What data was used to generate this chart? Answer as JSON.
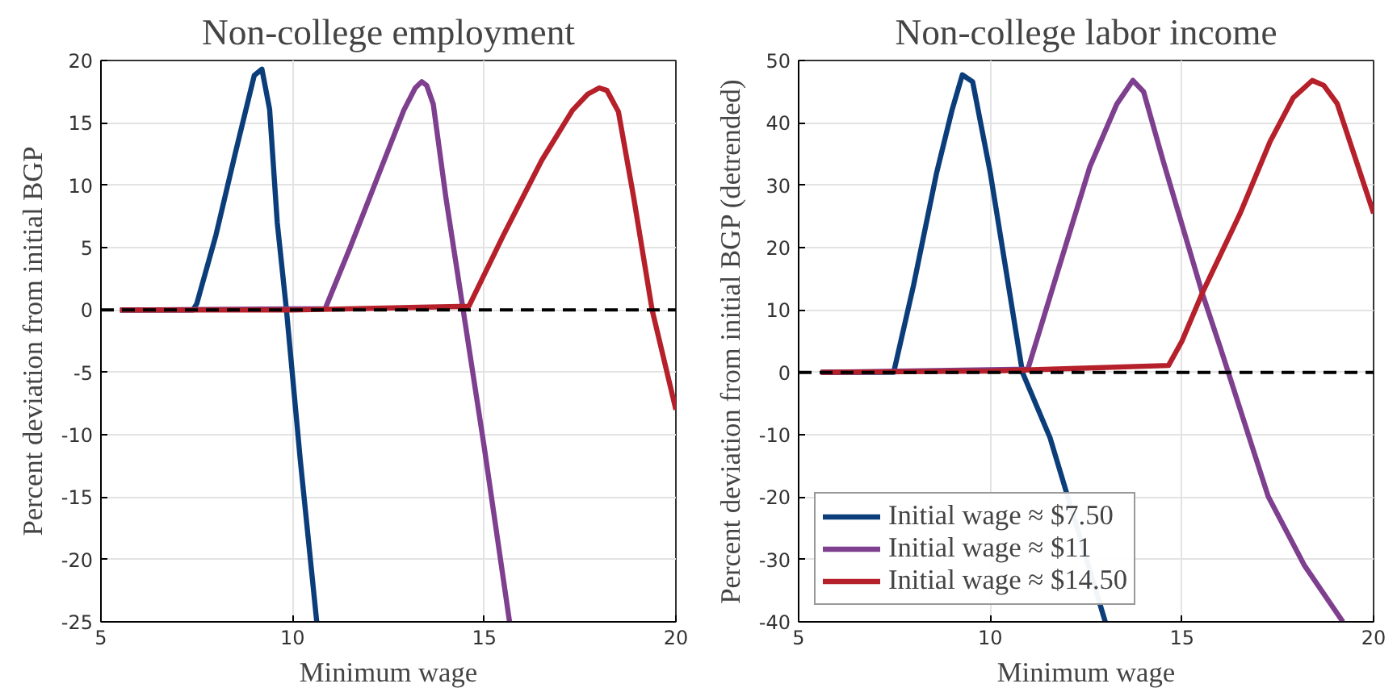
{
  "chart_data": [
    {
      "type": "line",
      "title": "Non-college employment",
      "xlabel": "Minimum wage",
      "ylabel": "Percent deviation from initial BGP",
      "xlim": [
        5,
        20
      ],
      "ylim": [
        -25,
        20
      ],
      "xticks": [
        5,
        10,
        15,
        20
      ],
      "yticks": [
        -25,
        -20,
        -15,
        -10,
        -5,
        0,
        5,
        10,
        15,
        20
      ],
      "grid": true,
      "legend": false,
      "ref_lines": [
        {
          "axis": "y",
          "value": 0,
          "color": "#000000",
          "line_style": "dashed"
        }
      ],
      "series": [
        {
          "color": "#0b3d7a",
          "x": [
            5.5,
            7.4,
            7.5,
            8.0,
            8.5,
            9.0,
            9.2,
            9.4,
            9.6,
            9.84,
            10.2,
            10.63
          ],
          "values": [
            0,
            0,
            0.5,
            6,
            12.5,
            18.8,
            19.3,
            16.1,
            7,
            0,
            -12,
            -25
          ]
        },
        {
          "color": "#7e3f8f",
          "x": [
            5.5,
            10.85,
            11.5,
            12.2,
            12.9,
            13.2,
            13.37,
            13.5,
            13.67,
            14.0,
            14.45,
            15.0,
            15.66
          ],
          "values": [
            0,
            0.1,
            5,
            10.5,
            16,
            17.8,
            18.3,
            18.0,
            16.5,
            9,
            0,
            -11,
            -25
          ]
        },
        {
          "color": "#b5202a",
          "x": [
            5.5,
            10,
            14.6,
            15.5,
            16.5,
            17.3,
            17.7,
            18.0,
            18.2,
            18.5,
            18.9,
            19.38,
            20.0
          ],
          "values": [
            0,
            0,
            0.3,
            6,
            12,
            16,
            17.3,
            17.8,
            17.6,
            15.9,
            9,
            0,
            -8
          ]
        }
      ]
    },
    {
      "type": "line",
      "title": "Non-college labor income",
      "xlabel": "Minimum wage",
      "ylabel": "Percent deviation from initial BGP (detrended)",
      "xlim": [
        5,
        20
      ],
      "ylim": [
        -40,
        50
      ],
      "xticks": [
        5,
        10,
        15,
        20
      ],
      "yticks": [
        -40,
        -30,
        -20,
        -10,
        0,
        10,
        20,
        30,
        40,
        50
      ],
      "grid": true,
      "legend": "bottom left",
      "ref_lines": [
        {
          "axis": "y",
          "value": 0,
          "color": "#000000",
          "line_style": "dashed"
        }
      ],
      "series": [
        {
          "name": "Initial wage ≈ $7.50",
          "color": "#0b3d7a",
          "x": [
            5.58,
            7.48,
            8.0,
            8.6,
            9.0,
            9.27,
            9.54,
            10.0,
            10.84,
            11.56,
            13.0
          ],
          "values": [
            0,
            0,
            14,
            32,
            42,
            47.7,
            46.6,
            32,
            0,
            -10.5,
            -40
          ]
        },
        {
          "name": "Initial wage ≈ $11",
          "color": "#7e3f8f",
          "x": [
            5.58,
            10.98,
            11.8,
            12.6,
            13.3,
            13.72,
            14.0,
            14.5,
            15.53,
            16.0,
            17.25,
            18.2,
            19.2
          ],
          "values": [
            0,
            0.5,
            17,
            33,
            43,
            46.8,
            45,
            34.1,
            12.7,
            4,
            -19.9,
            -31,
            -40
          ]
        },
        {
          "name": "Initial wage ≈ $14.50",
          "color": "#b5202a",
          "x": [
            5.58,
            10,
            14.65,
            15.0,
            15.53,
            16.52,
            17.3,
            17.9,
            18.4,
            18.7,
            19.05,
            20.0
          ],
          "values": [
            0,
            0.2,
            1.1,
            5,
            12.7,
            25.5,
            37,
            44,
            46.8,
            46,
            43.1,
            25.5
          ]
        }
      ]
    }
  ]
}
